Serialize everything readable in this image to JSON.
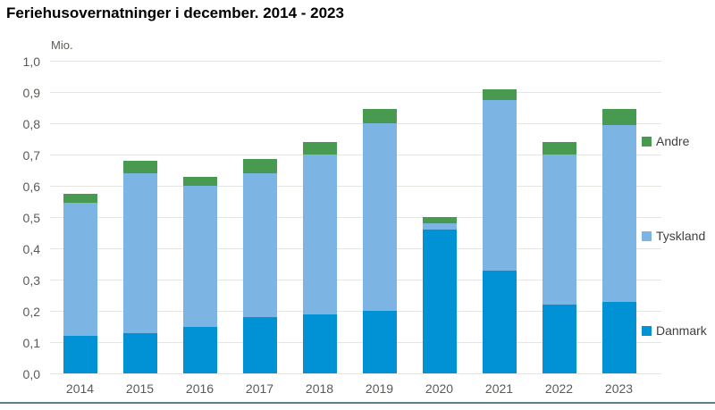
{
  "title": "Feriehusovernatninger i december. 2014 - 2023",
  "axis_unit_label": "Mio.",
  "colors": {
    "danmark": "#0092d4",
    "tyskland": "#7cb5e4",
    "andre": "#489a50",
    "gridline": "#e6e5e0",
    "axis_text": "#5b5b56",
    "bottom_rule": "#5f7d91"
  },
  "legend": [
    {
      "label": "Andre",
      "color_key": "andre"
    },
    {
      "label": "Tyskland",
      "color_key": "tyskland"
    },
    {
      "label": "Danmark",
      "color_key": "danmark"
    }
  ],
  "chart_data": {
    "type": "bar",
    "stacked": true,
    "title": "Feriehusovernatninger i december. 2014 - 2023",
    "xlabel": "",
    "ylabel": "Mio.",
    "ylim": [
      0,
      1.0
    ],
    "ytick_step": 0.1,
    "ytick_labels": [
      "0,0",
      "0,1",
      "0,2",
      "0,3",
      "0,4",
      "0,5",
      "0,6",
      "0,7",
      "0,8",
      "0,9",
      "1,0"
    ],
    "grid": true,
    "legend_position": "right",
    "categories": [
      "2014",
      "2015",
      "2016",
      "2017",
      "2018",
      "2019",
      "2020",
      "2021",
      "2022",
      "2023"
    ],
    "series": [
      {
        "name": "Danmark",
        "color_key": "danmark",
        "values": [
          0.12,
          0.13,
          0.15,
          0.18,
          0.19,
          0.2,
          0.46,
          0.33,
          0.22,
          0.23
        ]
      },
      {
        "name": "Tyskland",
        "color_key": "tyskland",
        "values": [
          0.425,
          0.51,
          0.45,
          0.46,
          0.51,
          0.6,
          0.02,
          0.545,
          0.48,
          0.565
        ]
      },
      {
        "name": "Andre",
        "color_key": "andre",
        "values": [
          0.03,
          0.04,
          0.03,
          0.045,
          0.04,
          0.045,
          0.02,
          0.035,
          0.04,
          0.05
        ]
      }
    ],
    "totals": [
      0.575,
      0.68,
      0.63,
      0.685,
      0.74,
      0.845,
      0.5,
      0.91,
      0.74,
      0.845
    ]
  }
}
